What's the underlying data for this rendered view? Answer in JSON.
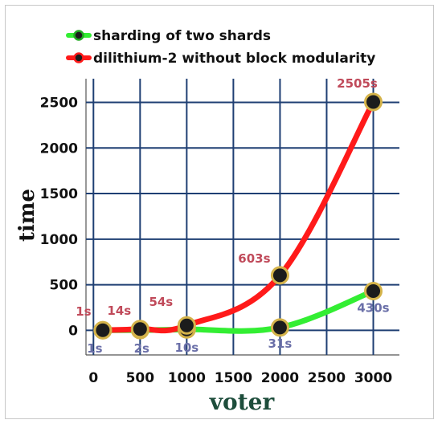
{
  "colors": {
    "grid": "#1f3f73",
    "series_a_line": "#33ee33",
    "series_b_line": "#ff1a1a",
    "marker_fill": "#1c1c1c",
    "marker_edge_a": "#22aa22",
    "marker_edge_b": "#d4b34a",
    "label_a": "#6a6fa8",
    "label_b": "#c04a5a"
  },
  "chart_data": {
    "type": "line",
    "title": "",
    "xlabel": "voter",
    "ylabel": "time",
    "xlim": [
      -80,
      3280
    ],
    "ylim": [
      -270,
      2760
    ],
    "grid": true,
    "legend_position": "top-left",
    "x_ticks": [
      "0",
      "500",
      "1000",
      "1500",
      "2000",
      "2500",
      "3000"
    ],
    "y_ticks": [
      "0",
      "500",
      "1000",
      "1500",
      "2000",
      "2500"
    ],
    "series": [
      {
        "name": "sharding of two shards",
        "x": [
          100,
          500,
          1000,
          2000,
          3000
        ],
        "y": [
          1,
          2,
          10,
          31,
          430
        ],
        "labels": [
          "1s",
          "2s",
          "10s",
          "31s",
          "430s"
        ]
      },
      {
        "name": "dilithium-2 without block modularity",
        "x": [
          100,
          500,
          1000,
          2000,
          3000
        ],
        "y": [
          1,
          14,
          54,
          603,
          2505
        ],
        "labels": [
          "1s",
          "14s",
          "54s",
          "603s",
          "2505s"
        ]
      }
    ]
  }
}
